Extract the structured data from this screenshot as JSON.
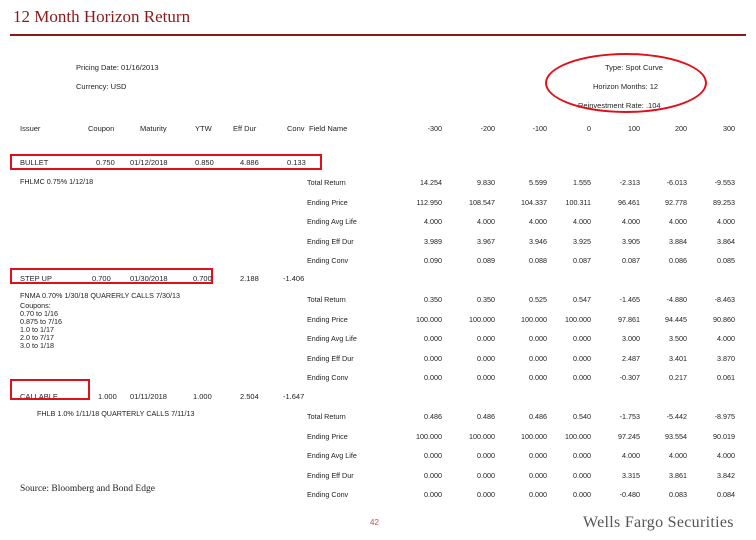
{
  "title": "12 Month Horizon Return",
  "header": {
    "pricing_date": "Pricing Date: 01/16/2013",
    "currency": "Currency: USD",
    "type": "Type: Spot Curve",
    "horizon_months": "Horizon Months: 12",
    "reinvestment_rate": "Reinvestment Rate: .104"
  },
  "columns": {
    "issuer": "Issuer",
    "coupon": "Coupon",
    "maturity": "Maturity",
    "ytw": "YTW",
    "eff_dur": "Eff Dur",
    "conv": "Conv",
    "field_name": "Field Name",
    "shifts": [
      "-300",
      "-200",
      "-100",
      "0",
      "100",
      "200",
      "300"
    ]
  },
  "bonds": [
    {
      "issuer": "BULLET",
      "coupon": "0.750",
      "maturity": "01/12/2018",
      "ytw": "0.850",
      "eff_dur": "4.886",
      "conv": "0.133",
      "description": "FHLMC 0.75% 1/12/18",
      "rows": [
        {
          "field": "Total Return",
          "values": [
            "14.254",
            "9.830",
            "5.599",
            "1.555",
            "-2.313",
            "-6.013",
            "-9.553"
          ]
        },
        {
          "field": "Ending Price",
          "values": [
            "112.950",
            "108.547",
            "104.337",
            "100.311",
            "96.461",
            "92.778",
            "89.253"
          ]
        },
        {
          "field": "Ending Avg Life",
          "values": [
            "4.000",
            "4.000",
            "4.000",
            "4.000",
            "4.000",
            "4.000",
            "4.000"
          ]
        },
        {
          "field": "Ending Eff Dur",
          "values": [
            "3.989",
            "3.967",
            "3.946",
            "3.925",
            "3.905",
            "3.884",
            "3.864"
          ]
        },
        {
          "field": "Ending Conv",
          "values": [
            "0.090",
            "0.089",
            "0.088",
            "0.087",
            "0.087",
            "0.086",
            "0.085"
          ]
        }
      ]
    },
    {
      "issuer": "STEP UP",
      "coupon": "0.700",
      "maturity": "01/30/2018",
      "ytw": "0.700",
      "eff_dur": "2.188",
      "conv": "-1.406",
      "description": "FNMA 0.70% 1/30/18 QUARERLY CALLS 7/30/13",
      "extra": [
        "Coupons:",
        "0.70 to 1/16",
        "0.875 to 7/16",
        "1.0 to 1/17",
        "2.0 to 7/17",
        "3.0 to 1/18"
      ],
      "rows": [
        {
          "field": "Total Return",
          "values": [
            "0.350",
            "0.350",
            "0.525",
            "0.547",
            "-1.465",
            "-4.880",
            "-8.463"
          ]
        },
        {
          "field": "Ending Price",
          "values": [
            "100.000",
            "100.000",
            "100.000",
            "100.000",
            "97.861",
            "94.445",
            "90.860"
          ]
        },
        {
          "field": "Ending Avg Life",
          "values": [
            "0.000",
            "0.000",
            "0.000",
            "0.000",
            "3.000",
            "3.500",
            "4.000"
          ]
        },
        {
          "field": "Ending Eff Dur",
          "values": [
            "0.000",
            "0.000",
            "0.000",
            "0.000",
            "2.487",
            "3.401",
            "3.870"
          ]
        },
        {
          "field": "Ending Conv",
          "values": [
            "0.000",
            "0.000",
            "0.000",
            "0.000",
            "-0.307",
            "0.217",
            "0.061"
          ]
        }
      ]
    },
    {
      "issuer": "CALLABLE",
      "coupon": "1.000",
      "maturity": "01/11/2018",
      "ytw": "1.000",
      "eff_dur": "2.504",
      "conv": "-1.647",
      "description": "FHLB 1.0% 1/11/18 QUARTERLY CALLS 7/11/13",
      "rows": [
        {
          "field": "Total Return",
          "values": [
            "0.486",
            "0.486",
            "0.486",
            "0.540",
            "-1.753",
            "-5.442",
            "-8.975"
          ]
        },
        {
          "field": "Ending Price",
          "values": [
            "100.000",
            "100.000",
            "100.000",
            "100.000",
            "97.245",
            "93.554",
            "90.019"
          ]
        },
        {
          "field": "Ending Avg Life",
          "values": [
            "0.000",
            "0.000",
            "0.000",
            "0.000",
            "4.000",
            "4.000",
            "4.000"
          ]
        },
        {
          "field": "Ending Eff Dur",
          "values": [
            "0.000",
            "0.000",
            "0.000",
            "0.000",
            "3.315",
            "3.861",
            "3.842"
          ]
        },
        {
          "field": "Ending Conv",
          "values": [
            "0.000",
            "0.000",
            "0.000",
            "0.000",
            "-0.480",
            "0.083",
            "0.084"
          ]
        }
      ]
    }
  ],
  "footer": {
    "source": "Source: Bloomberg and Bond Edge",
    "page": "42",
    "brand": "Wells Fargo Securities"
  },
  "colors": {
    "title": "#8b1a1a",
    "highlight": "#e0101a"
  }
}
